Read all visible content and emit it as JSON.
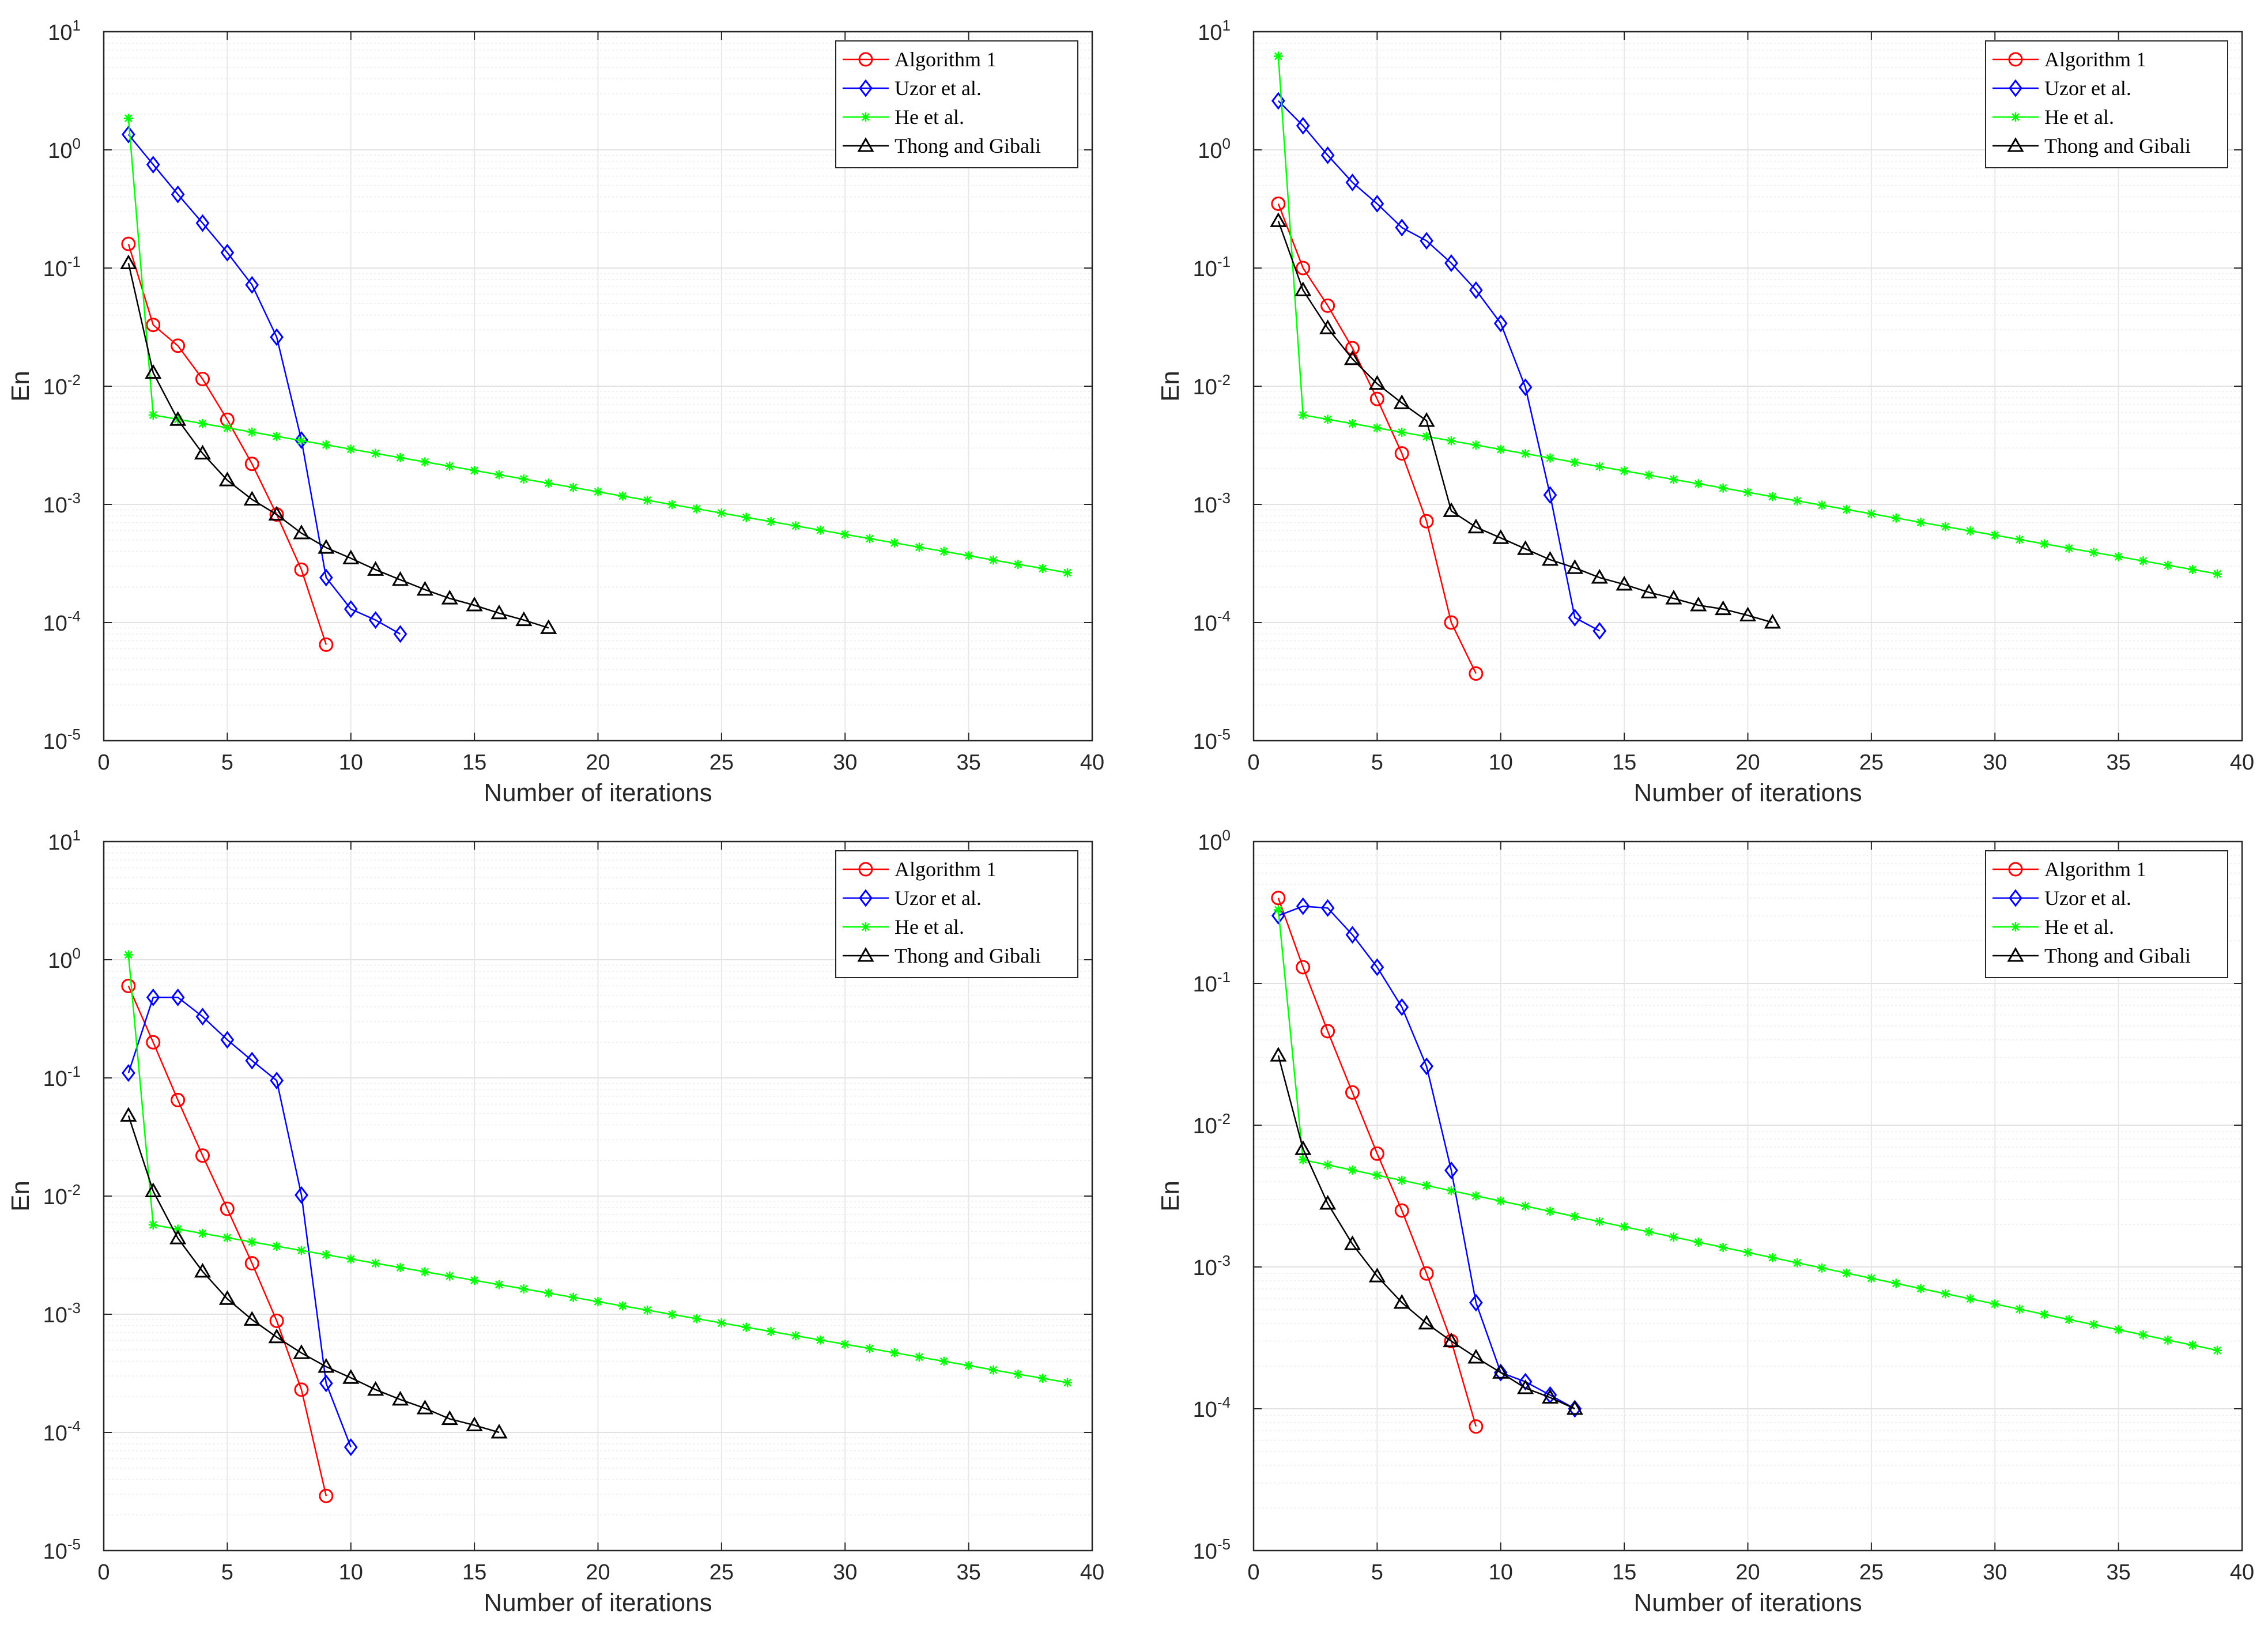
{
  "series_styles": [
    {
      "name": "Algorithm 1",
      "color": "#ff0000",
      "marker": "circle"
    },
    {
      "name": "Uzor et al.",
      "color": "#0000ff",
      "marker": "diamond"
    },
    {
      "name": "He et al.",
      "color": "#00ff00",
      "marker": "star"
    },
    {
      "name": "Thong and Gibali",
      "color": "#000000",
      "marker": "triangle"
    }
  ],
  "chart_data": [
    {
      "type": "line",
      "yscale": "log",
      "xlabel": "Number of iterations",
      "ylabel": "En",
      "xlim": [
        0,
        40
      ],
      "ylim": [
        1e-05,
        10
      ],
      "xticks": [
        0,
        5,
        10,
        15,
        20,
        25,
        30,
        35,
        40
      ],
      "yticks": [
        {
          "base": "10",
          "exp": "-5"
        },
        {
          "base": "10",
          "exp": "-4"
        },
        {
          "base": "10",
          "exp": "-3"
        },
        {
          "base": "10",
          "exp": "-2"
        },
        {
          "base": "10",
          "exp": "-1"
        },
        {
          "base": "10",
          "exp": "0"
        },
        {
          "base": "10",
          "exp": "1"
        }
      ],
      "grid": true,
      "legend": "top-right",
      "series": [
        {
          "name": "Algorithm 1",
          "x": [
            1,
            2,
            3,
            4,
            5,
            6,
            7,
            8,
            9
          ],
          "y": [
            0.16,
            0.033,
            0.022,
            0.0115,
            0.0052,
            0.0022,
            0.00082,
            0.00028,
            6.5e-05
          ]
        },
        {
          "name": "Uzor et al.",
          "x": [
            1,
            2,
            3,
            4,
            5,
            6,
            7,
            8,
            9,
            10,
            11,
            12
          ],
          "y": [
            1.35,
            0.75,
            0.42,
            0.24,
            0.135,
            0.072,
            0.026,
            0.0035,
            0.00024,
            0.00013,
            0.000105,
            8e-05
          ]
        },
        {
          "name": "He et al.",
          "x": [
            1,
            2,
            3,
            4,
            5,
            6,
            7,
            8,
            9,
            10,
            11,
            12,
            13,
            14,
            15,
            16,
            17,
            18,
            19,
            20,
            21,
            22,
            23,
            24,
            25,
            26,
            27,
            28,
            29,
            30,
            31,
            32,
            33,
            34,
            35,
            36,
            37,
            38,
            39
          ],
          "y": [
            1.85,
            0.0057,
            0.005246,
            0.004828,
            0.004443,
            0.004089,
            0.003763,
            0.003463,
            0.003187,
            0.002933,
            0.002699,
            0.002484,
            0.002286,
            0.002104,
            0.001936,
            0.001782,
            0.00164,
            0.001509,
            0.001389,
            0.001278,
            0.001176,
            0.001083,
            0.000996,
            0.000917,
            0.000844,
            0.000776,
            0.000715,
            0.000658,
            0.000605,
            0.000557,
            0.000513,
            0.000472,
            0.000434,
            0.0004,
            0.000368,
            0.000338,
            0.000311,
            0.000287,
            0.000264
          ]
        },
        {
          "name": "Thong and Gibali",
          "x": [
            1,
            2,
            3,
            4,
            5,
            6,
            7,
            8,
            9,
            10,
            11,
            12,
            13,
            14,
            15,
            16,
            17,
            18
          ],
          "y": [
            0.11,
            0.013,
            0.0052,
            0.0027,
            0.0016,
            0.0011,
            0.00082,
            0.00057,
            0.00043,
            0.00035,
            0.00028,
            0.00023,
            0.00019,
            0.00016,
            0.00014,
            0.00012,
            0.000105,
            9e-05
          ]
        }
      ]
    },
    {
      "type": "line",
      "yscale": "log",
      "xlabel": "Number of iterations",
      "ylabel": "En",
      "xlim": [
        0,
        40
      ],
      "ylim": [
        1e-05,
        10
      ],
      "xticks": [
        0,
        5,
        10,
        15,
        20,
        25,
        30,
        35,
        40
      ],
      "yticks": [
        {
          "base": "10",
          "exp": "-5"
        },
        {
          "base": "10",
          "exp": "-4"
        },
        {
          "base": "10",
          "exp": "-3"
        },
        {
          "base": "10",
          "exp": "-2"
        },
        {
          "base": "10",
          "exp": "-1"
        },
        {
          "base": "10",
          "exp": "0"
        },
        {
          "base": "10",
          "exp": "1"
        }
      ],
      "grid": true,
      "legend": "top-right",
      "series": [
        {
          "name": "Algorithm 1",
          "x": [
            1,
            2,
            3,
            4,
            5,
            6,
            7,
            8,
            9
          ],
          "y": [
            0.35,
            0.1,
            0.048,
            0.021,
            0.0078,
            0.0027,
            0.00072,
            0.0001,
            3.7e-05
          ]
        },
        {
          "name": "Uzor et al.",
          "x": [
            1,
            2,
            3,
            4,
            5,
            6,
            7,
            8,
            9,
            10,
            11,
            12,
            13,
            14
          ],
          "y": [
            2.6,
            1.6,
            0.9,
            0.53,
            0.35,
            0.22,
            0.17,
            0.11,
            0.065,
            0.034,
            0.0098,
            0.0012,
            0.00011,
            8.5e-05
          ]
        },
        {
          "name": "He et al.",
          "x": [
            1,
            2,
            3,
            4,
            5,
            6,
            7,
            8,
            9,
            10,
            11,
            12,
            13,
            14,
            15,
            16,
            17,
            18,
            19,
            20,
            21,
            22,
            23,
            24,
            25,
            26,
            27,
            28,
            29,
            30,
            31,
            32,
            33,
            34,
            35,
            36,
            37,
            38,
            39
          ],
          "y": [
            6.2,
            0.0057,
            0.005243,
            0.004822,
            0.004435,
            0.004079,
            0.003752,
            0.003451,
            0.003174,
            0.002919,
            0.002685,
            0.002469,
            0.002271,
            0.002089,
            0.001921,
            0.001767,
            0.001625,
            0.001495,
            0.001375,
            0.001265,
            0.001163,
            0.00107,
            0.000984,
            0.000905,
            0.000832,
            0.000766,
            0.000704,
            0.000648,
            0.000596,
            0.000548,
            0.000504,
            0.000463,
            0.000426,
            0.000392,
            0.000361,
            0.000332,
            0.000305,
            0.000281,
            0.000258
          ]
        },
        {
          "name": "Thong and Gibali",
          "x": [
            1,
            2,
            3,
            4,
            5,
            6,
            7,
            8,
            9,
            10,
            11,
            12,
            13,
            14,
            15,
            16,
            17,
            18,
            19,
            20,
            21
          ],
          "y": [
            0.25,
            0.065,
            0.031,
            0.017,
            0.0105,
            0.0072,
            0.0051,
            0.00088,
            0.00064,
            0.00052,
            0.00042,
            0.00034,
            0.00029,
            0.00024,
            0.00021,
            0.00018,
            0.00016,
            0.00014,
            0.00013,
            0.000115,
            0.0001
          ]
        }
      ]
    },
    {
      "type": "line",
      "yscale": "log",
      "xlabel": "Number of iterations",
      "ylabel": "En",
      "xlim": [
        0,
        40
      ],
      "ylim": [
        1e-05,
        10
      ],
      "xticks": [
        0,
        5,
        10,
        15,
        20,
        25,
        30,
        35,
        40
      ],
      "yticks": [
        {
          "base": "10",
          "exp": "-5"
        },
        {
          "base": "10",
          "exp": "-4"
        },
        {
          "base": "10",
          "exp": "-3"
        },
        {
          "base": "10",
          "exp": "-2"
        },
        {
          "base": "10",
          "exp": "-1"
        },
        {
          "base": "10",
          "exp": "0"
        },
        {
          "base": "10",
          "exp": "1"
        }
      ],
      "grid": true,
      "legend": "top-right",
      "series": [
        {
          "name": "Algorithm 1",
          "x": [
            1,
            2,
            3,
            4,
            5,
            6,
            7,
            8,
            9
          ],
          "y": [
            0.6,
            0.2,
            0.065,
            0.022,
            0.0078,
            0.0027,
            0.00088,
            0.00023,
            2.9e-05
          ]
        },
        {
          "name": "Uzor et al.",
          "x": [
            1,
            2,
            3,
            4,
            5,
            6,
            7,
            8,
            9,
            10
          ],
          "y": [
            0.11,
            0.48,
            0.48,
            0.33,
            0.21,
            0.14,
            0.095,
            0.0102,
            0.00026,
            7.5e-05
          ]
        },
        {
          "name": "He et al.",
          "x": [
            1,
            2,
            3,
            4,
            5,
            6,
            7,
            8,
            9,
            10,
            11,
            12,
            13,
            14,
            15,
            16,
            17,
            18,
            19,
            20,
            21,
            22,
            23,
            24,
            25,
            26,
            27,
            28,
            29,
            30,
            31,
            32,
            33,
            34,
            35,
            36,
            37,
            38,
            39
          ],
          "y": [
            1.1,
            0.0057,
            0.005246,
            0.004828,
            0.004443,
            0.004089,
            0.003763,
            0.003463,
            0.003187,
            0.002933,
            0.002699,
            0.002484,
            0.002286,
            0.002104,
            0.001936,
            0.001782,
            0.00164,
            0.001509,
            0.001389,
            0.001278,
            0.001176,
            0.001083,
            0.000996,
            0.000917,
            0.000844,
            0.000776,
            0.000715,
            0.000658,
            0.000605,
            0.000557,
            0.000513,
            0.000472,
            0.000434,
            0.0004,
            0.000368,
            0.000338,
            0.000311,
            0.000287,
            0.000264
          ]
        },
        {
          "name": "Thong and Gibali",
          "x": [
            1,
            2,
            3,
            4,
            5,
            6,
            7,
            8,
            9,
            10,
            11,
            12,
            13,
            14,
            15,
            16
          ],
          "y": [
            0.048,
            0.011,
            0.0044,
            0.0023,
            0.00135,
            0.0009,
            0.00064,
            0.00047,
            0.00036,
            0.00029,
            0.00023,
            0.00019,
            0.00016,
            0.00013,
            0.000115,
            0.0001
          ]
        }
      ]
    },
    {
      "type": "line",
      "yscale": "log",
      "xlabel": "Number of iterations",
      "ylabel": "En",
      "xlim": [
        0,
        40
      ],
      "ylim": [
        1e-05,
        1
      ],
      "xticks": [
        0,
        5,
        10,
        15,
        20,
        25,
        30,
        35,
        40
      ],
      "yticks": [
        {
          "base": "10",
          "exp": "-5"
        },
        {
          "base": "10",
          "exp": "-4"
        },
        {
          "base": "10",
          "exp": "-3"
        },
        {
          "base": "10",
          "exp": "-2"
        },
        {
          "base": "10",
          "exp": "-1"
        },
        {
          "base": "10",
          "exp": "0"
        }
      ],
      "grid": true,
      "legend": "top-right",
      "series": [
        {
          "name": "Algorithm 1",
          "x": [
            1,
            2,
            3,
            4,
            5,
            6,
            7,
            8,
            9
          ],
          "y": [
            0.4,
            0.13,
            0.046,
            0.017,
            0.0063,
            0.0025,
            0.0009,
            0.0003,
            7.5e-05
          ]
        },
        {
          "name": "Uzor et al.",
          "x": [
            1,
            2,
            3,
            4,
            5,
            6,
            7,
            8,
            9,
            10,
            11,
            12,
            13
          ],
          "y": [
            0.3,
            0.35,
            0.34,
            0.22,
            0.13,
            0.068,
            0.026,
            0.0048,
            0.00056,
            0.00018,
            0.000155,
            0.000125,
            0.0001
          ]
        },
        {
          "name": "He et al.",
          "x": [
            1,
            2,
            3,
            4,
            5,
            6,
            7,
            8,
            9,
            10,
            11,
            12,
            13,
            14,
            15,
            16,
            17,
            18,
            19,
            20,
            21,
            22,
            23,
            24,
            25,
            26,
            27,
            28,
            29,
            30,
            31,
            32,
            33,
            34,
            35,
            36,
            37,
            38,
            39
          ],
          "y": [
            0.33,
            0.0057,
            0.005243,
            0.004822,
            0.004435,
            0.004079,
            0.003752,
            0.003451,
            0.003174,
            0.002919,
            0.002685,
            0.002469,
            0.002271,
            0.002089,
            0.001921,
            0.001767,
            0.001625,
            0.001495,
            0.001375,
            0.001265,
            0.001163,
            0.00107,
            0.000984,
            0.000905,
            0.000832,
            0.000766,
            0.000704,
            0.000648,
            0.000596,
            0.000548,
            0.000504,
            0.000463,
            0.000426,
            0.000392,
            0.000361,
            0.000332,
            0.000305,
            0.000281,
            0.000258
          ]
        },
        {
          "name": "Thong and Gibali",
          "x": [
            1,
            2,
            3,
            4,
            5,
            6,
            7,
            8,
            9,
            10,
            11,
            12,
            13
          ],
          "y": [
            0.031,
            0.0068,
            0.0028,
            0.00145,
            0.00086,
            0.00056,
            0.0004,
            0.0003,
            0.00023,
            0.00018,
            0.00014,
            0.00012,
            0.0001
          ]
        }
      ]
    }
  ]
}
